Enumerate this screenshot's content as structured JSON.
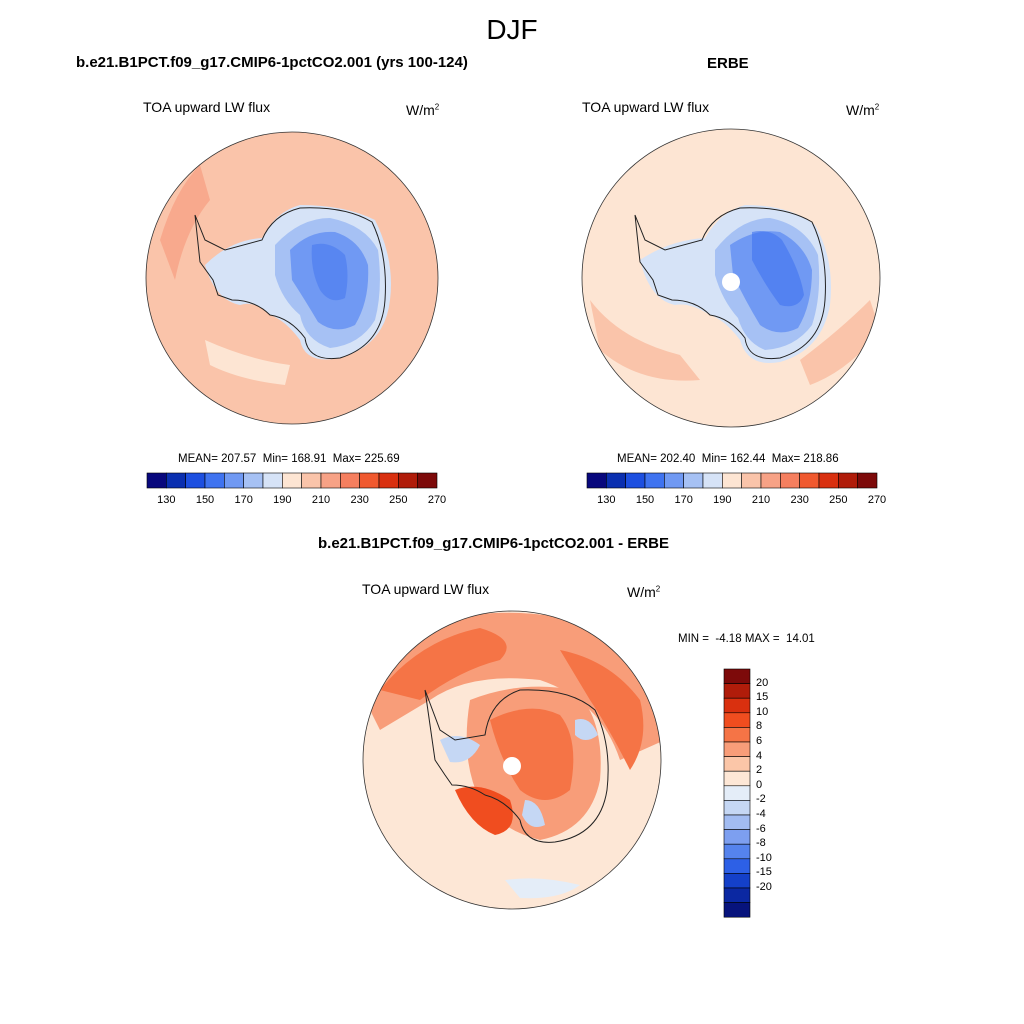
{
  "season": "DJF",
  "units_label": "W/m",
  "units_exp": "2",
  "variable": "TOA upward LW flux",
  "panel_model": {
    "title": "b.e21.B1PCT.f09_g17.CMIP6-1pctCO2.001 (yrs 100-124)",
    "mean_label": "MEAN=",
    "mean": "207.57",
    "min_label": "Min=",
    "min": "168.91",
    "max_label": "Max=",
    "max": "225.69"
  },
  "panel_obs": {
    "title": "ERBE",
    "mean_label": "MEAN=",
    "mean": "202.40",
    "min_label": "Min=",
    "min": "162.44",
    "max_label": "Max=",
    "max": "218.86"
  },
  "panel_diff": {
    "title": "b.e21.B1PCT.f09_g17.CMIP6-1pctCO2.001 - ERBE",
    "min_label": "MIN =",
    "min": "-4.18",
    "max_label": "MAX =",
    "max": "14.01"
  },
  "abs_colorbar": {
    "colors": [
      "#08087d",
      "#0a2fb0",
      "#1d4fe0",
      "#3f73f0",
      "#7099f3",
      "#a6c1f4",
      "#d6e3f7",
      "#fde5d3",
      "#fac4aa",
      "#f7a286",
      "#f57f5f",
      "#f0592f",
      "#d93010",
      "#b01c0a",
      "#7d0a0a"
    ],
    "ticks": [
      "130",
      "150",
      "170",
      "190",
      "210",
      "230",
      "250",
      "270"
    ]
  },
  "diff_colorbar": {
    "colors_top_to_bottom": [
      "#7d0a0a",
      "#b01c0a",
      "#d9300f",
      "#f04d1f",
      "#f57446",
      "#f89d79",
      "#fbc6a8",
      "#fde7d6",
      "#e4edf8",
      "#c5d7f4",
      "#a2bcf2",
      "#7d9ff0",
      "#5583ed",
      "#2d60e6",
      "#1440c9",
      "#0b28a2",
      "#07137c"
    ],
    "labels_top_to_bottom": [
      "20",
      "15",
      "10",
      "8",
      "6",
      "4",
      "2",
      "0",
      "-2",
      "-4",
      "-6",
      "-8",
      "-10",
      "-15",
      "-20"
    ]
  },
  "chart_data": {
    "type": "heatmap",
    "projection": "south polar stereographic",
    "title": "DJF",
    "panels": [
      {
        "name": "b.e21.B1PCT.f09_g17.CMIP6-1pctCO2.001 (yrs 100-124)",
        "variable": "TOA upward LW flux",
        "units": "W/m2",
        "mean": 207.57,
        "min": 168.91,
        "max": 225.69,
        "levels": [
          130,
          140,
          150,
          160,
          170,
          180,
          190,
          200,
          210,
          220,
          230,
          240,
          250,
          260,
          270
        ]
      },
      {
        "name": "ERBE",
        "variable": "TOA upward LW flux",
        "units": "W/m2",
        "mean": 202.4,
        "min": 162.44,
        "max": 218.86,
        "levels": [
          130,
          140,
          150,
          160,
          170,
          180,
          190,
          200,
          210,
          220,
          230,
          240,
          250,
          260,
          270
        ]
      },
      {
        "name": "b.e21.B1PCT.f09_g17.CMIP6-1pctCO2.001 - ERBE",
        "variable": "TOA upward LW flux",
        "units": "W/m2",
        "min": -4.18,
        "max": 14.01,
        "levels": [
          -20,
          -15,
          -10,
          -8,
          -6,
          -4,
          -2,
          0,
          2,
          4,
          6,
          8,
          10,
          15,
          20
        ]
      }
    ]
  }
}
